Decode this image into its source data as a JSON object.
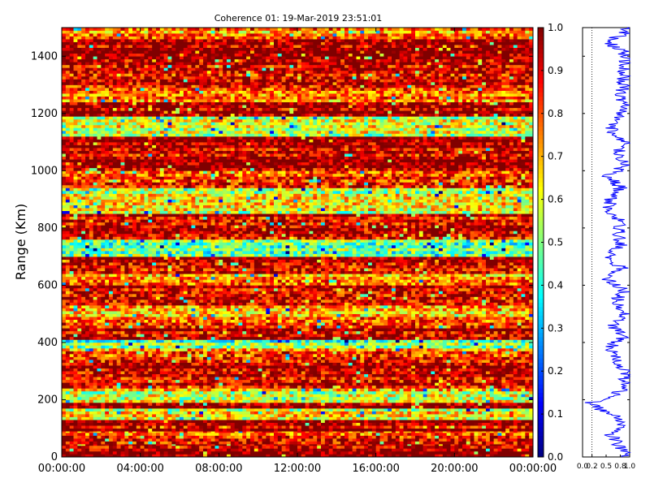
{
  "chart_data": [
    {
      "type": "heatmap",
      "title": "Coherence 01: 19-Mar-2019 23:51:01",
      "xlabel": "",
      "ylabel": "Range (Km)",
      "x_tick_labels": [
        "00:00:00",
        "04:00:00",
        "08:00:00",
        "12:00:00",
        "16:00:00",
        "20:00:00",
        "00:00:00"
      ],
      "x_ticks_hours": [
        0,
        4,
        8,
        12,
        16,
        20,
        24
      ],
      "xlim_hours": [
        0,
        24
      ],
      "y_tick_labels": [
        "0",
        "200",
        "400",
        "600",
        "800",
        "1000",
        "1200",
        "1400"
      ],
      "y_ticks": [
        0,
        200,
        400,
        600,
        800,
        1000,
        1200,
        1400
      ],
      "ylim": [
        0,
        1500
      ],
      "colorbar": {
        "colormap": "jet",
        "range": [
          0.0,
          1.0
        ],
        "tick_labels": [
          "0.0",
          "0.1",
          "0.2",
          "0.3",
          "0.4",
          "0.5",
          "0.6",
          "0.7",
          "0.8",
          "0.9",
          "1.0"
        ],
        "ticks": [
          0.0,
          0.1,
          0.2,
          0.3,
          0.4,
          0.5,
          0.6,
          0.7,
          0.8,
          0.9,
          1.0
        ]
      },
      "range_bands": [
        {
          "from": 0,
          "to": 45,
          "coherence": 0.98
        },
        {
          "from": 45,
          "to": 90,
          "coherence": 0.85
        },
        {
          "from": 90,
          "to": 130,
          "coherence": 0.96
        },
        {
          "from": 130,
          "to": 170,
          "coherence": 0.62
        },
        {
          "from": 170,
          "to": 190,
          "coherence": 0.97
        },
        {
          "from": 190,
          "to": 240,
          "coherence": 0.62
        },
        {
          "from": 240,
          "to": 330,
          "coherence": 0.95
        },
        {
          "from": 330,
          "to": 380,
          "coherence": 0.8
        },
        {
          "from": 380,
          "to": 410,
          "coherence": 0.5
        },
        {
          "from": 410,
          "to": 470,
          "coherence": 0.93
        },
        {
          "from": 470,
          "to": 530,
          "coherence": 0.72
        },
        {
          "from": 530,
          "to": 600,
          "coherence": 0.93
        },
        {
          "from": 600,
          "to": 640,
          "coherence": 0.75
        },
        {
          "from": 640,
          "to": 700,
          "coherence": 0.93
        },
        {
          "from": 700,
          "to": 760,
          "coherence": 0.5
        },
        {
          "from": 760,
          "to": 850,
          "coherence": 0.92
        },
        {
          "from": 850,
          "to": 940,
          "coherence": 0.6
        },
        {
          "from": 940,
          "to": 1000,
          "coherence": 0.84
        },
        {
          "from": 1000,
          "to": 1120,
          "coherence": 0.96
        },
        {
          "from": 1120,
          "to": 1190,
          "coherence": 0.6
        },
        {
          "from": 1190,
          "to": 1240,
          "coherence": 0.98
        },
        {
          "from": 1240,
          "to": 1300,
          "coherence": 0.78
        },
        {
          "from": 1300,
          "to": 1400,
          "coherence": 0.93
        },
        {
          "from": 1400,
          "to": 1460,
          "coherence": 0.97
        },
        {
          "from": 1460,
          "to": 1500,
          "coherence": 0.72
        }
      ]
    },
    {
      "type": "line",
      "title": "",
      "xlabel": "",
      "ylabel": "",
      "x_tick_labels": [
        "0.0",
        "0.2",
        "0.5",
        "0.8",
        "1.0"
      ],
      "x_ticks": [
        0.0,
        0.2,
        0.5,
        0.8,
        1.0
      ],
      "xlim": [
        0.0,
        1.0
      ],
      "ylim": [
        0,
        1500
      ],
      "color": "#0000ff",
      "reference_line_x": 0.2,
      "series": [
        {
          "range": [
            0,
            40,
            80,
            110,
            140,
            175,
            190,
            200,
            230,
            260,
            300,
            340,
            380,
            420,
            460,
            500,
            540,
            580,
            620,
            660,
            700,
            740,
            780,
            820,
            860,
            900,
            940,
            980,
            1020,
            1060,
            1100,
            1140,
            1180,
            1220,
            1260,
            1300,
            1340,
            1380,
            1420,
            1450,
            1480,
            1500
          ],
          "values": [
            0.95,
            0.75,
            0.6,
            0.85,
            0.7,
            0.3,
            0.15,
            0.6,
            0.8,
            0.9,
            0.92,
            0.7,
            0.55,
            0.85,
            0.6,
            0.9,
            0.7,
            0.88,
            0.55,
            0.85,
            0.5,
            0.8,
            0.75,
            0.8,
            0.55,
            0.6,
            0.8,
            0.55,
            0.9,
            0.75,
            0.9,
            0.6,
            0.75,
            0.95,
            0.78,
            0.85,
            0.88,
            0.9,
            0.85,
            0.5,
            0.9,
            0.95
          ]
        }
      ]
    }
  ]
}
